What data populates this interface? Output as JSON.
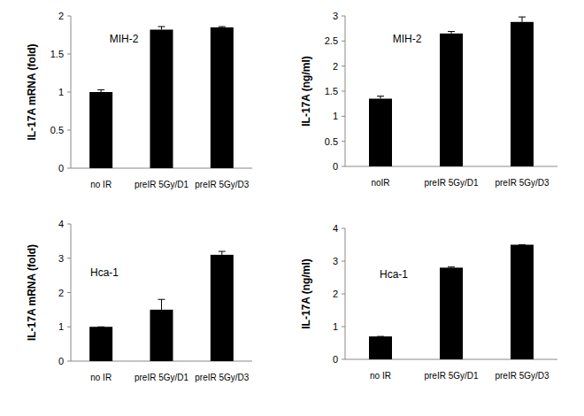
{
  "chart_data": [
    {
      "type": "bar",
      "title": "MIH-2",
      "y_label": "IL-17A mRNA  (fold)",
      "categories": [
        "no IR",
        "preIR 5Gy/D1",
        "preIR 5Gy/D3"
      ],
      "values": [
        1.0,
        1.82,
        1.85
      ],
      "errors": [
        0.03,
        0.04,
        0.01
      ],
      "color": "#000000",
      "ylim": [
        0,
        2
      ],
      "yticks": [
        0,
        0.5,
        1,
        1.5,
        2
      ]
    },
    {
      "type": "bar",
      "title": "MIH-2",
      "y_label": "IL-17A (ng/ml)",
      "categories": [
        "noIR",
        "preIR 5Gy/D1",
        "preIR 5Gy/D3"
      ],
      "values": [
        1.35,
        2.65,
        2.88
      ],
      "errors": [
        0.05,
        0.04,
        0.1
      ],
      "color": "#000000",
      "ylim": [
        0,
        3
      ],
      "yticks": [
        0,
        0.5,
        1,
        1.5,
        2,
        2.5,
        3
      ]
    },
    {
      "type": "bar",
      "title": "Hca-1",
      "y_label": "IL-17A mRNA  (fold)",
      "categories": [
        "no IR",
        "preIR 5Gy/D1",
        "preIR 5Gy/D3"
      ],
      "values": [
        1.0,
        1.5,
        3.1
      ],
      "errors": [
        0,
        0.3,
        0.1
      ],
      "color": "#000000",
      "ylim": [
        0,
        4
      ],
      "yticks": [
        0,
        1,
        2,
        3,
        4
      ]
    },
    {
      "type": "bar",
      "title": "Hca-1",
      "y_label": "IL-17A (ng/ml)",
      "categories": [
        "no IR",
        "preIR 5Gy/D1",
        "preIR 5Gy/D3"
      ],
      "values": [
        0.7,
        2.8,
        3.5
      ],
      "errors": [
        0,
        0.02,
        0
      ],
      "color": "#000000",
      "ylim": [
        0,
        4
      ],
      "yticks": [
        0,
        1,
        2,
        3,
        4
      ]
    }
  ]
}
